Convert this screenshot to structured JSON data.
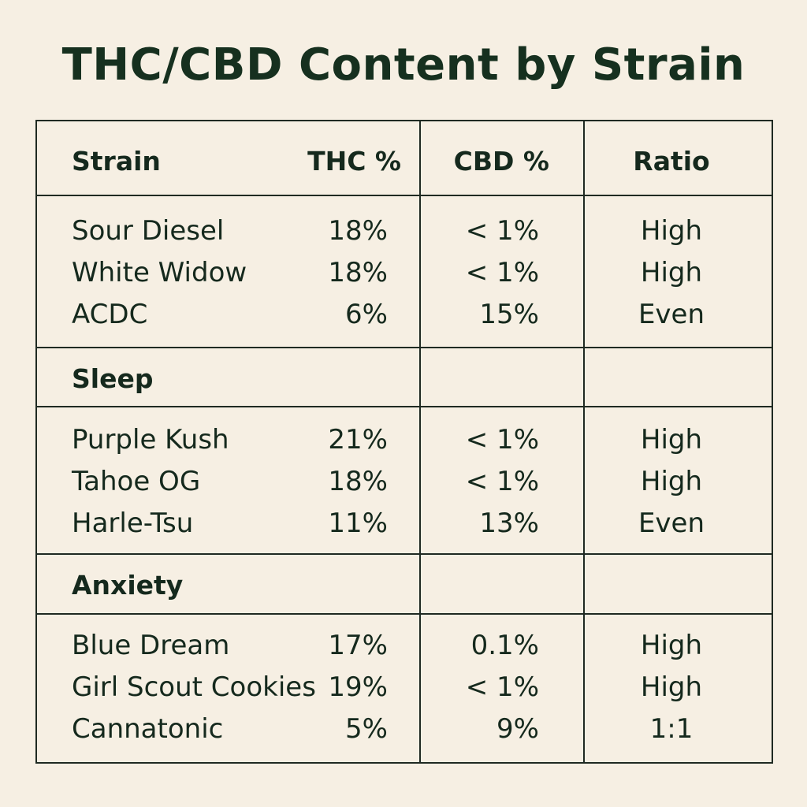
{
  "title": "THC/CBD Content by Strain",
  "headers": {
    "strain": "Strain",
    "thc": "THC %",
    "cbd": "CBD %",
    "ratio": "Ratio"
  },
  "groups": [
    {
      "label": "",
      "rows": [
        {
          "strain": "Sour Diesel",
          "thc": "18%",
          "cbd": "< 1%",
          "ratio": "High"
        },
        {
          "strain": "White Widow",
          "thc": "18%",
          "cbd": "< 1%",
          "ratio": "High"
        },
        {
          "strain": "ACDC",
          "thc": "6%",
          "cbd": "15%",
          "ratio": "Even"
        }
      ]
    },
    {
      "label": "Sleep",
      "rows": [
        {
          "strain": "Purple Kush",
          "thc": "21%",
          "cbd": "< 1%",
          "ratio": "High"
        },
        {
          "strain": "Tahoe OG",
          "thc": "18%",
          "cbd": "< 1%",
          "ratio": "High"
        },
        {
          "strain": "Harle-Tsu",
          "thc": "11%",
          "cbd": "13%",
          "ratio": "Even"
        }
      ]
    },
    {
      "label": "Anxiety",
      "rows": [
        {
          "strain": "Blue Dream",
          "thc": "17%",
          "cbd": "0.1%",
          "ratio": "High"
        },
        {
          "strain": "Girl Scout Cookies",
          "thc": "19%",
          "cbd": "< 1%",
          "ratio": "High"
        },
        {
          "strain": "Cannatonic",
          "thc": "5%",
          "cbd": "9%",
          "ratio": "1:1"
        }
      ]
    }
  ],
  "colors": {
    "background": "#f6efe3",
    "text": "#15291d",
    "border": "#1f2a22"
  }
}
